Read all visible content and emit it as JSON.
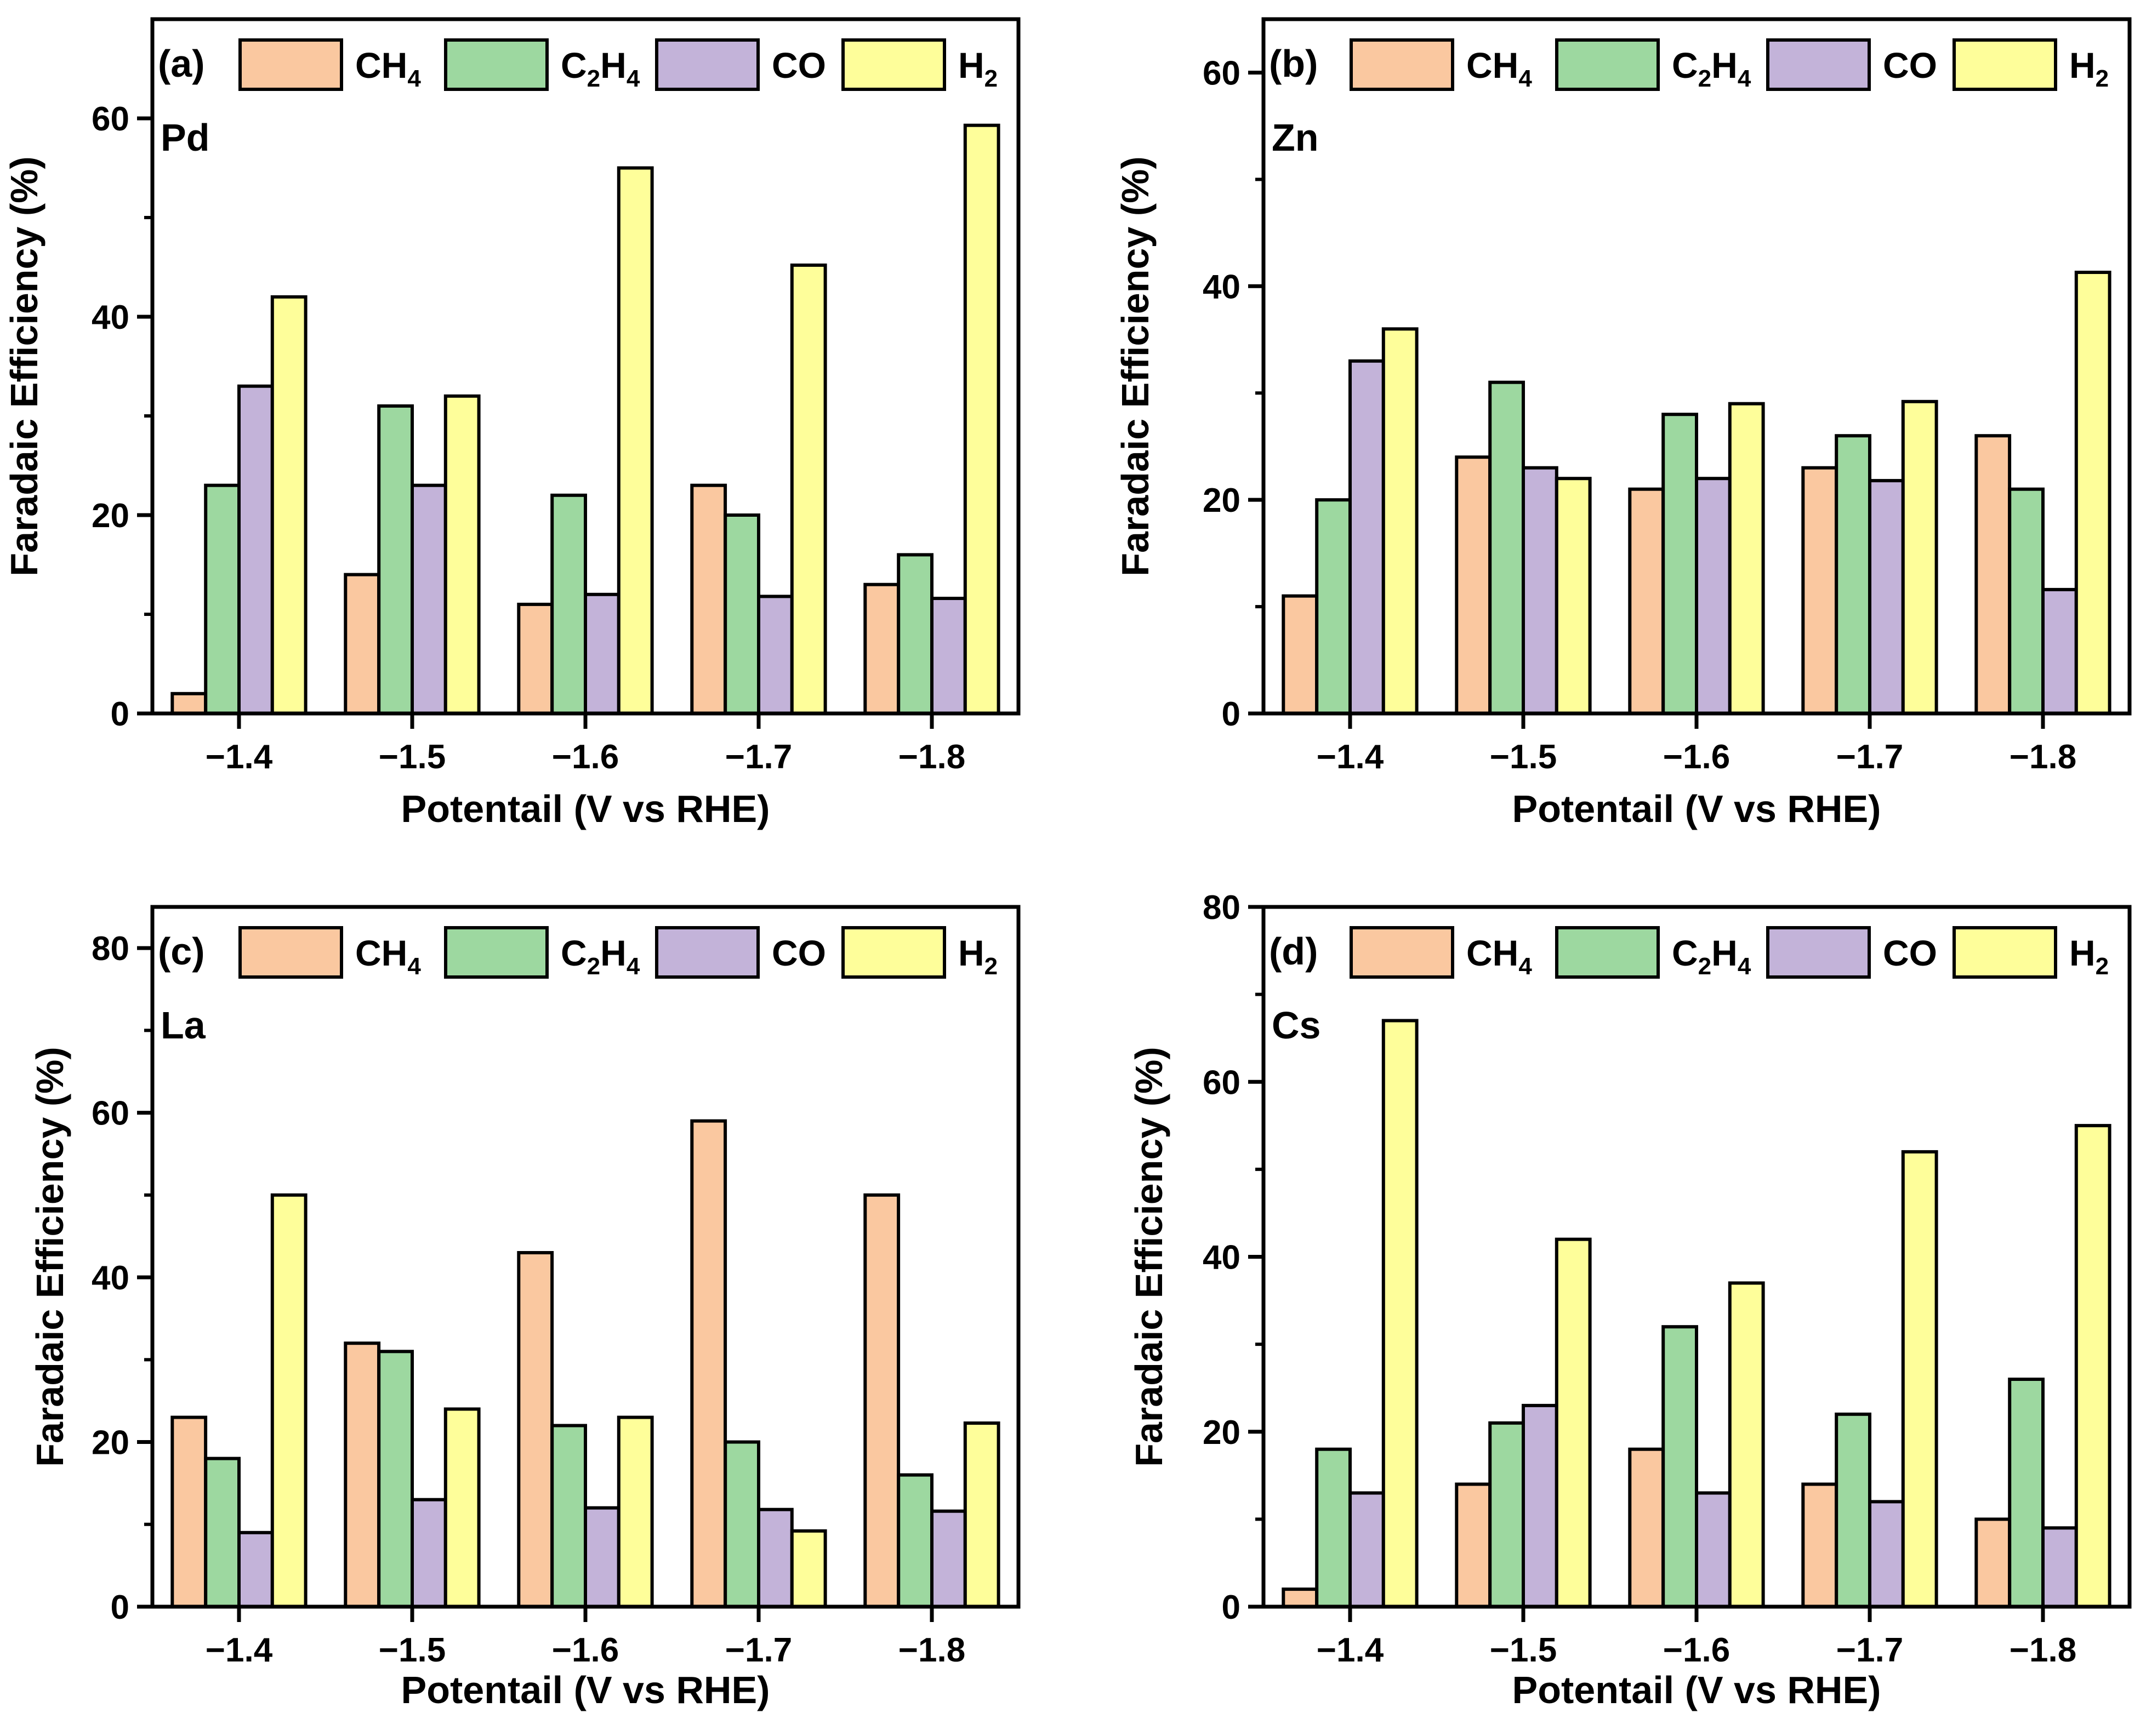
{
  "figure": {
    "series_names": [
      "CH4",
      "C2H4",
      "CO",
      "H2"
    ],
    "colors": {
      "CH4": "#fac8a0",
      "C2H4": "#9dd8a0",
      "CO": "#c3b3d9",
      "H2": "#fefe9a",
      "edge": "#000000"
    }
  },
  "chart_data": [
    {
      "type": "bar",
      "panel": "(a)",
      "element": "Pd",
      "categories": [
        "−1.4",
        "−1.5",
        "−1.6",
        "−1.7",
        "−1.8"
      ],
      "series": [
        {
          "name": "CH4",
          "values": [
            2,
            14,
            11,
            23,
            13
          ]
        },
        {
          "name": "C2H4",
          "values": [
            23,
            31,
            22,
            20,
            16
          ]
        },
        {
          "name": "CO",
          "values": [
            33,
            23,
            12,
            11.8,
            11.6
          ]
        },
        {
          "name": "H2",
          "values": [
            42,
            32,
            55,
            45.2,
            59.3
          ]
        }
      ],
      "xlabel": "Potentail (V vs RHE)",
      "ylabel": "Faradaic Efficiency (%)",
      "ylim": [
        0,
        70
      ],
      "yticks": [
        0,
        20,
        40,
        60
      ],
      "ytick_labels": [
        "0",
        "20",
        "40",
        "60"
      ],
      "legend": "top"
    },
    {
      "type": "bar",
      "panel": "(b)",
      "element": "Zn",
      "categories": [
        "−1.4",
        "−1.5",
        "−1.6",
        "−1.7",
        "−1.8"
      ],
      "series": [
        {
          "name": "CH4",
          "values": [
            11,
            24,
            21,
            23,
            26
          ]
        },
        {
          "name": "C2H4",
          "values": [
            20,
            31,
            28,
            26,
            21
          ]
        },
        {
          "name": "CO",
          "values": [
            33,
            23,
            22,
            21.8,
            11.6
          ]
        },
        {
          "name": "H2",
          "values": [
            36,
            22,
            29,
            29.2,
            41.3
          ]
        }
      ],
      "xlabel": "Potentail (V vs RHE)",
      "ylabel": "Faradaic Efficiency (%)",
      "ylim": [
        0,
        65
      ],
      "yticks": [
        0,
        20,
        40,
        60
      ],
      "ytick_labels": [
        "0",
        "20",
        "40",
        "60"
      ],
      "legend": "top"
    },
    {
      "type": "bar",
      "panel": "(c)",
      "element": "La",
      "categories": [
        "−1.4",
        "−1.5",
        "−1.6",
        "−1.7",
        "−1.8"
      ],
      "series": [
        {
          "name": "CH4",
          "values": [
            23,
            32,
            43,
            59,
            50
          ]
        },
        {
          "name": "C2H4",
          "values": [
            18,
            31,
            22,
            20,
            16
          ]
        },
        {
          "name": "CO",
          "values": [
            9,
            13,
            12,
            11.8,
            11.6
          ]
        },
        {
          "name": "H2",
          "values": [
            50,
            24,
            23,
            9.2,
            22.3
          ]
        }
      ],
      "xlabel": "Potentail (V vs RHE)",
      "ylabel": "Faradaic Efficiency (%)",
      "ylim": [
        0,
        85
      ],
      "yticks": [
        0,
        20,
        40,
        60,
        80
      ],
      "ytick_labels": [
        "0",
        "20",
        "40",
        "60",
        "80"
      ],
      "legend": "top"
    },
    {
      "type": "bar",
      "panel": "(d)",
      "element": "Cs",
      "categories": [
        "−1.4",
        "−1.5",
        "−1.6",
        "−1.7",
        "−1.8"
      ],
      "series": [
        {
          "name": "CH4",
          "values": [
            2,
            14,
            18,
            14,
            10
          ]
        },
        {
          "name": "C2H4",
          "values": [
            18,
            21,
            32,
            22,
            26
          ]
        },
        {
          "name": "CO",
          "values": [
            13,
            23,
            13,
            12,
            9
          ]
        },
        {
          "name": "H2",
          "values": [
            67,
            42,
            37,
            52,
            55
          ]
        }
      ],
      "xlabel": "Potentail (V vs RHE)",
      "ylabel": "Faradaic Efficiency (%)",
      "ylim": [
        0,
        80
      ],
      "yticks": [
        0,
        20,
        40,
        60,
        80
      ],
      "ytick_labels": [
        "0",
        "20",
        "40",
        "60",
        "80"
      ],
      "legend": "top"
    }
  ]
}
